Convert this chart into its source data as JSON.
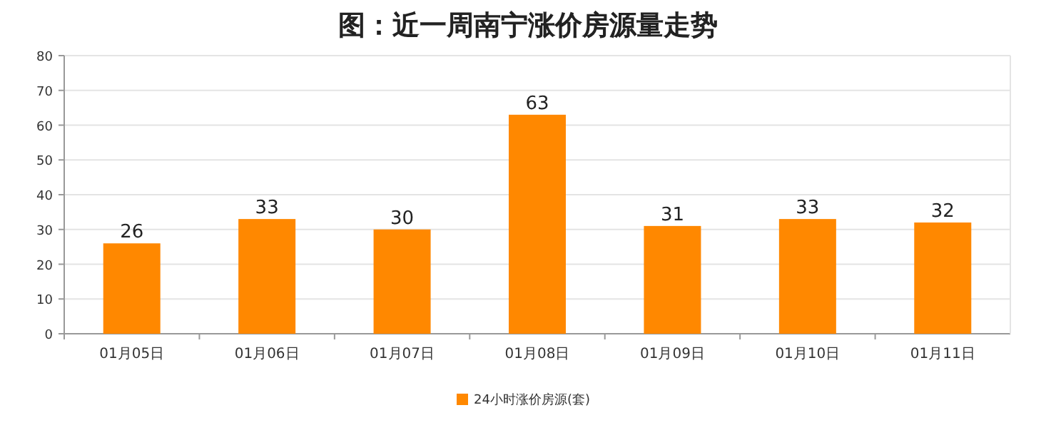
{
  "chart_data": {
    "type": "bar",
    "title": "图：近一周南宁涨价房源量走势",
    "categories": [
      "01月05日",
      "01月06日",
      "01月07日",
      "01月08日",
      "01月09日",
      "01月10日",
      "01月11日"
    ],
    "series": [
      {
        "name": "24小时涨价房源(套)",
        "color": "#ff8800",
        "values": [
          26,
          33,
          30,
          63,
          31,
          33,
          32
        ]
      }
    ],
    "ylim": [
      0,
      80
    ],
    "yticks": [
      0,
      10,
      20,
      30,
      40,
      50,
      60,
      70,
      80
    ],
    "grid": "y",
    "legend": "bottom",
    "data_labels": true
  }
}
